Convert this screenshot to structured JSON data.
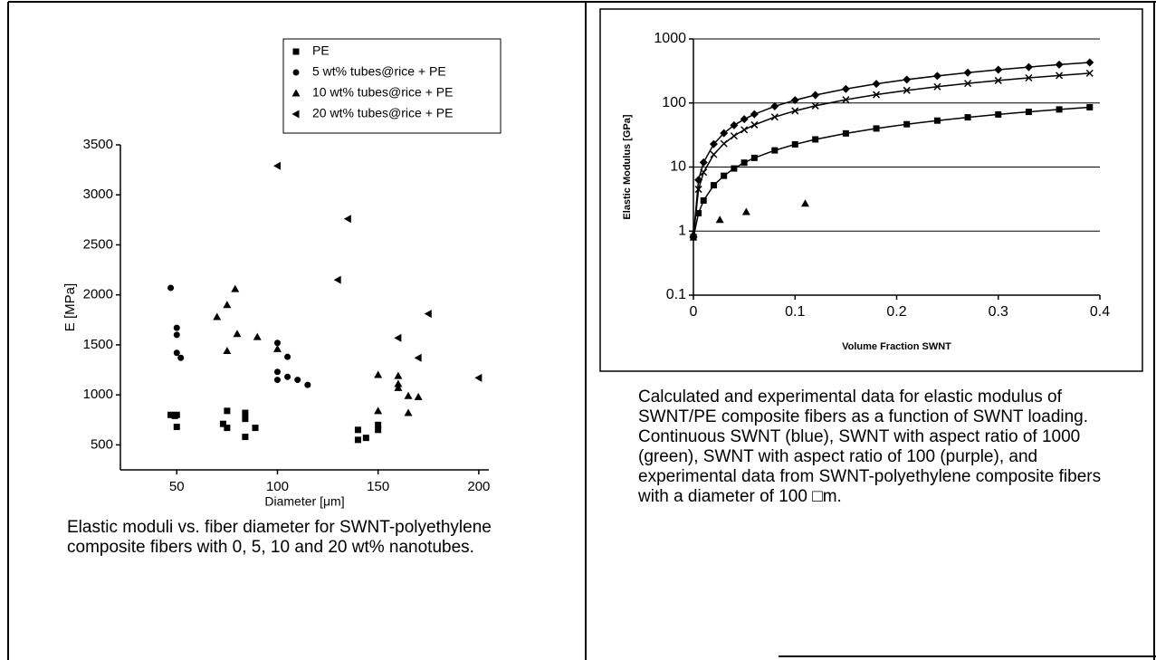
{
  "chart_data": [
    {
      "type": "scatter",
      "xlabel": "Diameter [μm]",
      "ylabel": "E [MPa]",
      "xlim": [
        22,
        205
      ],
      "ylim": [
        250,
        3500
      ],
      "xticks": [
        50,
        100,
        150,
        200
      ],
      "yticks": [
        500,
        1000,
        1500,
        2000,
        2500,
        3000,
        3500
      ],
      "legend": "top",
      "grid": false,
      "caption": "Elastic moduli vs. fiber diameter for SWNT-polyethylene composite fibers with 0, 5, 10 and 20 wt% nanotubes.",
      "series": [
        {
          "name": "PE",
          "color": "#000000",
          "marker": "square",
          "x": [
            47,
            49,
            50,
            50,
            73,
            75,
            75,
            84,
            84,
            84,
            89,
            140,
            140,
            144,
            150,
            150
          ],
          "values": [
            800,
            790,
            800,
            680,
            710,
            840,
            670,
            820,
            760,
            580,
            670,
            650,
            550,
            570,
            700,
            650
          ]
        },
        {
          "name": "5 wt% tubes@rice + PE",
          "color": "#000000",
          "marker": "circle",
          "x": [
            47,
            50,
            50,
            50,
            52,
            100,
            100,
            100,
            105,
            105,
            110,
            115
          ],
          "values": [
            2070,
            1670,
            1600,
            1420,
            1370,
            1520,
            1230,
            1150,
            1380,
            1180,
            1150,
            1100
          ]
        },
        {
          "name": "10 wt% tubes@rice + PE",
          "color": "#000000",
          "marker": "triangle",
          "x": [
            70,
            75,
            75,
            79,
            80,
            90,
            100,
            150,
            150,
            160,
            160,
            160,
            165,
            165,
            170
          ],
          "values": [
            1780,
            1900,
            1440,
            2060,
            1610,
            1580,
            1460,
            1200,
            840,
            1190,
            1070,
            1110,
            990,
            820,
            980
          ]
        },
        {
          "name": "20 wt% tubes@rice + PE",
          "color": "#000000",
          "marker": "triangle-left",
          "x": [
            100,
            135,
            130,
            160,
            170,
            175,
            200
          ],
          "values": [
            3290,
            2760,
            2150,
            1570,
            1370,
            1810,
            1170
          ]
        }
      ]
    },
    {
      "type": "line",
      "xlabel": "Volume Fraction SWNT",
      "ylabel": "Elastic Modulus [GPa]",
      "xlim": [
        0,
        0.4
      ],
      "ylim": [
        0.1,
        1000
      ],
      "log_y": true,
      "xticks": [
        0,
        0.1,
        0.2,
        0.3,
        0.4
      ],
      "yticks": [
        0.1,
        1,
        10,
        100,
        1000
      ],
      "grid": true,
      "caption": "Calculated and experimental data for elastic modulus of SWNT/PE composite fibers as a function of SWNT loading. Continuous SWNT (blue), SWNT with aspect ratio of 1000 (green), SWNT with aspect ratio of 100 (purple), and experimental data from SWNT-polyethylene composite fibers with a diameter of 100 □m.",
      "series": [
        {
          "color": "#000000",
          "marker": "diamond",
          "line": true,
          "x": [
            0,
            0.005,
            0.01,
            0.02,
            0.03,
            0.04,
            0.05,
            0.06,
            0.08,
            0.1,
            0.12,
            0.15,
            0.18,
            0.21,
            0.24,
            0.27,
            0.3,
            0.33,
            0.36,
            0.39
          ],
          "values": [
            0.8,
            6.3,
            11.8,
            22.8,
            33.8,
            44.8,
            55.8,
            66.8,
            88.8,
            110.8,
            132.8,
            165.8,
            198.8,
            231.8,
            264.8,
            297.8,
            330.8,
            363.8,
            396.8,
            429.8
          ]
        },
        {
          "color": "#000000",
          "marker": "x",
          "line": true,
          "x": [
            0,
            0.005,
            0.01,
            0.02,
            0.03,
            0.04,
            0.05,
            0.06,
            0.08,
            0.1,
            0.12,
            0.15,
            0.18,
            0.21,
            0.24,
            0.27,
            0.3,
            0.33,
            0.36,
            0.39
          ],
          "values": [
            0.8,
            4.5,
            8.3,
            15.7,
            23.2,
            30.6,
            38.1,
            45.5,
            60.4,
            75.3,
            90.2,
            112.6,
            134.9,
            157.3,
            179.6,
            202,
            224.3,
            246.7,
            269,
            291.4
          ]
        },
        {
          "color": "#000000",
          "marker": "square",
          "line": true,
          "x": [
            0,
            0.005,
            0.01,
            0.02,
            0.03,
            0.04,
            0.05,
            0.06,
            0.08,
            0.1,
            0.12,
            0.15,
            0.18,
            0.21,
            0.24,
            0.27,
            0.3,
            0.33,
            0.36,
            0.39
          ],
          "values": [
            0.8,
            1.9,
            3,
            5.2,
            7.3,
            9.5,
            11.7,
            13.9,
            18.2,
            22.6,
            27,
            33.5,
            40,
            46.6,
            53.1,
            59.7,
            66.2,
            72.7,
            79.3,
            85.8
          ]
        },
        {
          "color": "#000000",
          "marker": "triangle",
          "line": false,
          "x": [
            0,
            0.026,
            0.052,
            0.11
          ],
          "values": [
            0.9,
            1.5,
            2,
            2.7
          ]
        }
      ]
    }
  ]
}
